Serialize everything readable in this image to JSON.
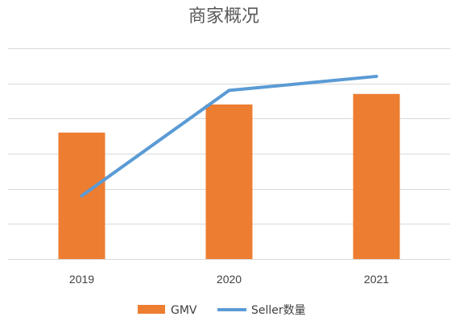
{
  "chart_data": {
    "type": "bar",
    "title": "商家概况",
    "categories": [
      "2019",
      "2020",
      "2021"
    ],
    "series": [
      {
        "name": "GMV",
        "type": "bar",
        "color": "#ED7D31",
        "values": [
          3.6,
          4.4,
          4.7
        ]
      },
      {
        "name": "Seller数量",
        "type": "line",
        "color": "#5B9BD5",
        "values": [
          1.8,
          4.8,
          5.2
        ]
      }
    ],
    "ylim": [
      0,
      6
    ],
    "y_ticks_labeled": false,
    "grid": true,
    "legend_position": "bottom"
  }
}
